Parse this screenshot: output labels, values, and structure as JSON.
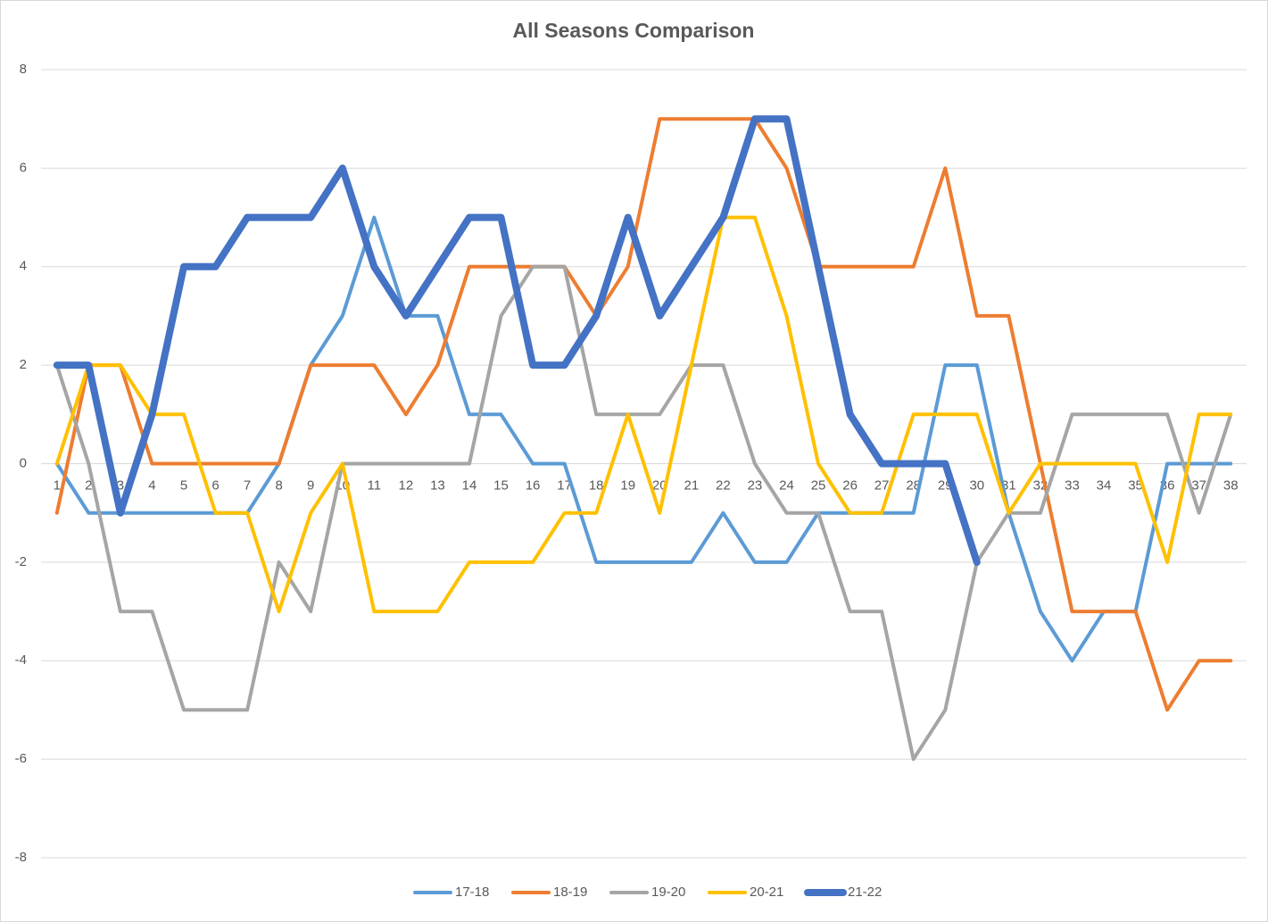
{
  "chart_data": {
    "type": "line",
    "title": "All Seasons Comparison",
    "categories": [
      "1",
      "2",
      "3",
      "4",
      "5",
      "6",
      "7",
      "8",
      "9",
      "10",
      "11",
      "12",
      "13",
      "14",
      "15",
      "16",
      "17",
      "18",
      "19",
      "20",
      "21",
      "22",
      "23",
      "24",
      "25",
      "26",
      "27",
      "28",
      "29",
      "30",
      "31",
      "32",
      "33",
      "34",
      "35",
      "36",
      "37",
      "38"
    ],
    "series": [
      {
        "name": "17-18",
        "color": "#5b9bd5",
        "line_width": 4,
        "values": [
          0,
          -1,
          -1,
          -1,
          -1,
          -1,
          -1,
          0,
          2,
          3,
          5,
          3,
          3,
          1,
          1,
          0,
          0,
          -2,
          -2,
          -2,
          -2,
          -1,
          -2,
          -2,
          -1,
          -1,
          -1,
          -1,
          2,
          2,
          -1,
          -3,
          -4,
          -3,
          -3,
          0,
          0,
          0
        ]
      },
      {
        "name": "18-19",
        "color": "#ed7d31",
        "line_width": 4,
        "values": [
          -1,
          2,
          2,
          0,
          0,
          0,
          0,
          0,
          2,
          2,
          2,
          1,
          2,
          4,
          4,
          4,
          4,
          3,
          4,
          7,
          7,
          7,
          7,
          6,
          4,
          4,
          4,
          4,
          6,
          3,
          3,
          0,
          -3,
          -3,
          -3,
          -5,
          -4,
          -4
        ]
      },
      {
        "name": "19-20",
        "color": "#a5a5a5",
        "line_width": 4,
        "values": [
          2,
          0,
          -3,
          -3,
          -5,
          -5,
          -5,
          -2,
          -3,
          0,
          0,
          0,
          0,
          0,
          3,
          4,
          4,
          1,
          1,
          1,
          2,
          2,
          0,
          -1,
          -1,
          -3,
          -3,
          -6,
          -5,
          -2,
          -1,
          -1,
          1,
          1,
          1,
          1,
          -1,
          1
        ]
      },
      {
        "name": "20-21",
        "color": "#ffc000",
        "line_width": 4,
        "values": [
          0,
          2,
          2,
          1,
          1,
          -1,
          -1,
          -3,
          -1,
          0,
          -3,
          -3,
          -3,
          -2,
          -2,
          -2,
          -1,
          -1,
          1,
          -1,
          2,
          5,
          5,
          3,
          0,
          -1,
          -1,
          1,
          1,
          1,
          -1,
          0,
          0,
          0,
          0,
          -2,
          1,
          1
        ]
      },
      {
        "name": "21-22",
        "color": "#4472c4",
        "line_width": 8,
        "values": [
          2,
          2,
          -1,
          1,
          4,
          4,
          5,
          5,
          5,
          6,
          4,
          3,
          4,
          5,
          5,
          2,
          2,
          3,
          5,
          3,
          4,
          5,
          7,
          7,
          4,
          1,
          0,
          0,
          0,
          -2,
          null,
          null,
          null,
          null,
          null,
          null,
          null,
          null
        ]
      }
    ],
    "ylim": [
      -8,
      8
    ],
    "yticks": [
      -8,
      -6,
      -4,
      -2,
      0,
      2,
      4,
      6,
      8
    ],
    "grid": true,
    "legend": "bottom"
  }
}
